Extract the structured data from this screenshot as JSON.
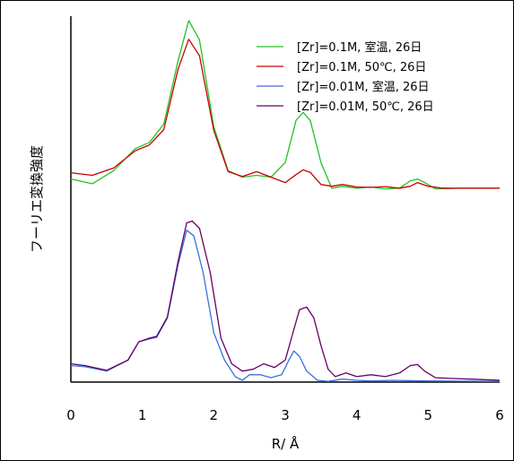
{
  "chart_data": {
    "type": "line",
    "title": "",
    "xlabel": "R/ Å",
    "ylabel": "フーリエ変換強度",
    "xlim": [
      0,
      6
    ],
    "ylim": [
      0,
      1
    ],
    "x_ticks": [
      "0",
      "1",
      "2",
      "3",
      "4",
      "5",
      "6"
    ],
    "grid": false,
    "legend_position": "top-right",
    "series": [
      {
        "name": "[Zr]=0.1M, 室温, 26日",
        "color": "#22c322",
        "points": [
          [
            0,
            0.555
          ],
          [
            0.3,
            0.542
          ],
          [
            0.6,
            0.578
          ],
          [
            0.9,
            0.638
          ],
          [
            1.1,
            0.655
          ],
          [
            1.3,
            0.705
          ],
          [
            1.5,
            0.878
          ],
          [
            1.65,
            0.988
          ],
          [
            1.8,
            0.935
          ],
          [
            2.0,
            0.698
          ],
          [
            2.2,
            0.578
          ],
          [
            2.4,
            0.56
          ],
          [
            2.6,
            0.565
          ],
          [
            2.8,
            0.56
          ],
          [
            3.0,
            0.6
          ],
          [
            3.15,
            0.715
          ],
          [
            3.25,
            0.737
          ],
          [
            3.35,
            0.715
          ],
          [
            3.5,
            0.6
          ],
          [
            3.65,
            0.53
          ],
          [
            3.8,
            0.535
          ],
          [
            4.0,
            0.53
          ],
          [
            4.2,
            0.533
          ],
          [
            4.4,
            0.528
          ],
          [
            4.6,
            0.53
          ],
          [
            4.75,
            0.55
          ],
          [
            4.85,
            0.555
          ],
          [
            4.95,
            0.545
          ],
          [
            5.1,
            0.528
          ],
          [
            5.5,
            0.53
          ],
          [
            6.0,
            0.53
          ]
        ]
      },
      {
        "name": "[Zr]=0.1M, 50℃, 26日",
        "color": "#cc0000",
        "points": [
          [
            0,
            0.572
          ],
          [
            0.3,
            0.565
          ],
          [
            0.6,
            0.585
          ],
          [
            0.9,
            0.632
          ],
          [
            1.1,
            0.648
          ],
          [
            1.3,
            0.69
          ],
          [
            1.5,
            0.855
          ],
          [
            1.65,
            0.937
          ],
          [
            1.8,
            0.892
          ],
          [
            2.0,
            0.688
          ],
          [
            2.2,
            0.575
          ],
          [
            2.4,
            0.562
          ],
          [
            2.6,
            0.575
          ],
          [
            2.8,
            0.56
          ],
          [
            3.0,
            0.545
          ],
          [
            3.15,
            0.567
          ],
          [
            3.25,
            0.58
          ],
          [
            3.35,
            0.573
          ],
          [
            3.5,
            0.54
          ],
          [
            3.65,
            0.535
          ],
          [
            3.8,
            0.54
          ],
          [
            4.0,
            0.533
          ],
          [
            4.2,
            0.532
          ],
          [
            4.4,
            0.534
          ],
          [
            4.6,
            0.53
          ],
          [
            4.75,
            0.535
          ],
          [
            4.85,
            0.545
          ],
          [
            5.0,
            0.535
          ],
          [
            5.2,
            0.53
          ],
          [
            5.6,
            0.53
          ],
          [
            6.0,
            0.53
          ]
        ]
      },
      {
        "name": "[Zr]=0.01M, 室温, 26日",
        "color": "#3a70e0",
        "points": [
          [
            0,
            0.045
          ],
          [
            0.2,
            0.042
          ],
          [
            0.5,
            0.03
          ],
          [
            0.8,
            0.06
          ],
          [
            0.95,
            0.11
          ],
          [
            1.1,
            0.118
          ],
          [
            1.2,
            0.122
          ],
          [
            1.35,
            0.175
          ],
          [
            1.5,
            0.32
          ],
          [
            1.62,
            0.415
          ],
          [
            1.72,
            0.4
          ],
          [
            1.85,
            0.3
          ],
          [
            2.0,
            0.135
          ],
          [
            2.15,
            0.06
          ],
          [
            2.3,
            0.015
          ],
          [
            2.4,
            0.005
          ],
          [
            2.5,
            0.02
          ],
          [
            2.65,
            0.02
          ],
          [
            2.8,
            0.012
          ],
          [
            2.95,
            0.02
          ],
          [
            3.05,
            0.06
          ],
          [
            3.12,
            0.085
          ],
          [
            3.2,
            0.07
          ],
          [
            3.3,
            0.03
          ],
          [
            3.45,
            0.005
          ],
          [
            3.6,
            0.002
          ],
          [
            3.8,
            0.008
          ],
          [
            4.0,
            0.005
          ],
          [
            4.2,
            0.003
          ],
          [
            4.5,
            0.005
          ],
          [
            5.0,
            0.003
          ],
          [
            6.0,
            0.002
          ]
        ]
      },
      {
        "name": "[Zr]=0.01M, 50℃, 26日",
        "color": "#660066",
        "points": [
          [
            0,
            0.05
          ],
          [
            0.2,
            0.045
          ],
          [
            0.5,
            0.032
          ],
          [
            0.8,
            0.06
          ],
          [
            0.95,
            0.11
          ],
          [
            1.1,
            0.12
          ],
          [
            1.2,
            0.125
          ],
          [
            1.35,
            0.178
          ],
          [
            1.5,
            0.33
          ],
          [
            1.62,
            0.435
          ],
          [
            1.7,
            0.44
          ],
          [
            1.8,
            0.42
          ],
          [
            1.95,
            0.3
          ],
          [
            2.1,
            0.12
          ],
          [
            2.25,
            0.05
          ],
          [
            2.4,
            0.03
          ],
          [
            2.55,
            0.035
          ],
          [
            2.7,
            0.05
          ],
          [
            2.85,
            0.04
          ],
          [
            3.0,
            0.06
          ],
          [
            3.1,
            0.13
          ],
          [
            3.2,
            0.198
          ],
          [
            3.3,
            0.205
          ],
          [
            3.4,
            0.175
          ],
          [
            3.5,
            0.1
          ],
          [
            3.6,
            0.035
          ],
          [
            3.7,
            0.015
          ],
          [
            3.85,
            0.025
          ],
          [
            4.0,
            0.015
          ],
          [
            4.2,
            0.02
          ],
          [
            4.4,
            0.015
          ],
          [
            4.6,
            0.025
          ],
          [
            4.75,
            0.045
          ],
          [
            4.85,
            0.048
          ],
          [
            4.95,
            0.03
          ],
          [
            5.1,
            0.012
          ],
          [
            5.3,
            0.01
          ],
          [
            5.6,
            0.008
          ],
          [
            6.0,
            0.005
          ]
        ]
      }
    ]
  }
}
